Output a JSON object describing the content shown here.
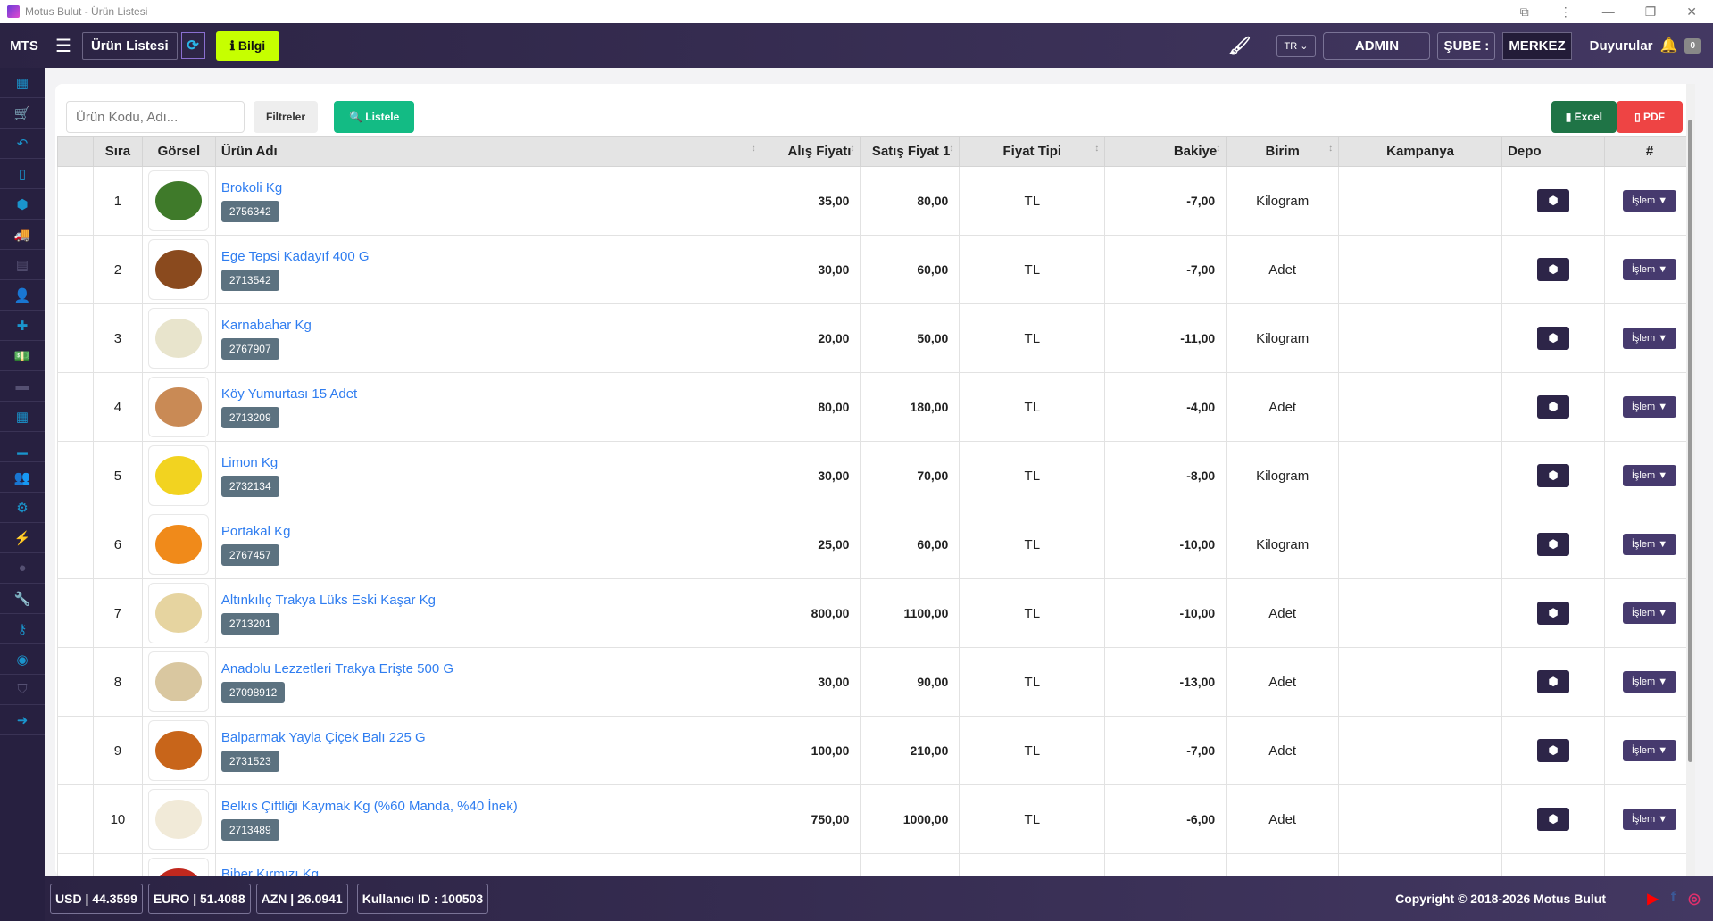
{
  "window": {
    "title": "Motus Bulut - Ürün Listesi"
  },
  "header": {
    "brand": "MTS",
    "page": "Ürün Listesi",
    "info": "Bilgi",
    "lang": "TR",
    "user": "ADMIN",
    "branch_label": "ŞUBE :",
    "branch": "MERKEZ",
    "announcements": "Duyurular",
    "announce_count": "0"
  },
  "toolbar": {
    "search_placeholder": "Ürün Kodu, Adı...",
    "filters": "Filtreler",
    "list": "Listele",
    "excel": "Excel",
    "pdf": "PDF"
  },
  "table": {
    "headers": [
      "",
      "Sıra",
      "Görsel",
      "Ürün Adı",
      "Alış Fiyatı",
      "Satış Fiyat 1",
      "Fiyat Tipi",
      "Bakiye",
      "Birim",
      "Kampanya",
      "Depo",
      "#"
    ],
    "action_label": "İşlem ▼",
    "rows": [
      {
        "no": "1",
        "name": "Brokoli Kg",
        "code": "2756342",
        "buy": "35,00",
        "sell": "80,00",
        "type": "TL",
        "balance": "-7,00",
        "unit": "Kilogram",
        "color": "#3f7a2a"
      },
      {
        "no": "2",
        "name": "Ege Tepsi Kadayıf 400 G",
        "code": "2713542",
        "buy": "30,00",
        "sell": "60,00",
        "type": "TL",
        "balance": "-7,00",
        "unit": "Adet",
        "color": "#8a4a1e"
      },
      {
        "no": "3",
        "name": "Karnabahar Kg",
        "code": "2767907",
        "buy": "20,00",
        "sell": "50,00",
        "type": "TL",
        "balance": "-11,00",
        "unit": "Kilogram",
        "color": "#e8e4cc"
      },
      {
        "no": "4",
        "name": "Köy Yumurtası 15 Adet",
        "code": "2713209",
        "buy": "80,00",
        "sell": "180,00",
        "type": "TL",
        "balance": "-4,00",
        "unit": "Adet",
        "color": "#c98a55"
      },
      {
        "no": "5",
        "name": "Limon Kg",
        "code": "2732134",
        "buy": "30,00",
        "sell": "70,00",
        "type": "TL",
        "balance": "-8,00",
        "unit": "Kilogram",
        "color": "#f2d320"
      },
      {
        "no": "6",
        "name": "Portakal Kg",
        "code": "2767457",
        "buy": "25,00",
        "sell": "60,00",
        "type": "TL",
        "balance": "-10,00",
        "unit": "Kilogram",
        "color": "#f08a1a"
      },
      {
        "no": "7",
        "name": "Altınkılıç Trakya Lüks Eski Kaşar Kg",
        "code": "2713201",
        "buy": "800,00",
        "sell": "1100,00",
        "type": "TL",
        "balance": "-10,00",
        "unit": "Adet",
        "color": "#e6d4a0"
      },
      {
        "no": "8",
        "name": "Anadolu Lezzetleri Trakya Erişte 500 G",
        "code": "27098912",
        "buy": "30,00",
        "sell": "90,00",
        "type": "TL",
        "balance": "-13,00",
        "unit": "Adet",
        "color": "#d9c7a0"
      },
      {
        "no": "9",
        "name": "Balparmak Yayla Çiçek Balı 225 G",
        "code": "2731523",
        "buy": "100,00",
        "sell": "210,00",
        "type": "TL",
        "balance": "-7,00",
        "unit": "Adet",
        "color": "#c8651a"
      },
      {
        "no": "10",
        "name": "Belkıs Çiftliği Kaymak Kg (%60 Manda, %40 İnek)",
        "code": "2713489",
        "buy": "750,00",
        "sell": "1000,00",
        "type": "TL",
        "balance": "-6,00",
        "unit": "Adet",
        "color": "#f1ead8"
      },
      {
        "no": "",
        "name": "Biber Kırmızı Kg",
        "code": "",
        "buy": "",
        "sell": "",
        "type": "",
        "balance": "",
        "unit": "",
        "color": "#c0281e"
      }
    ]
  },
  "footer": {
    "usd": "USD | 44.3599",
    "euro": "EURO | 51.4088",
    "azn": "AZN | 26.0941",
    "user_id": "Kullanıcı ID : 100503",
    "copyright": "Copyright © 2018-2026 Motus Bulut"
  },
  "colors": {
    "header": "#2b2343",
    "accent_green": "#13bb84",
    "info": "#c6ff00",
    "excel": "#1f7446",
    "pdf": "#ee4444",
    "link": "#2f7df0"
  },
  "sidebar_icons": [
    "dashboard-icon",
    "cart-icon",
    "return-icon",
    "file-icon",
    "cubes-icon",
    "truck-icon",
    "code-file-icon",
    "user-plus-icon",
    "puzzle-icon",
    "money-icon",
    "briefcase-icon",
    "calculator-icon",
    "chart-icon",
    "users-icon",
    "cogs-icon",
    "plug-icon",
    "globe-icon",
    "wrench-icon",
    "key-icon",
    "eye-icon",
    "shield-icon",
    "logout-icon"
  ]
}
